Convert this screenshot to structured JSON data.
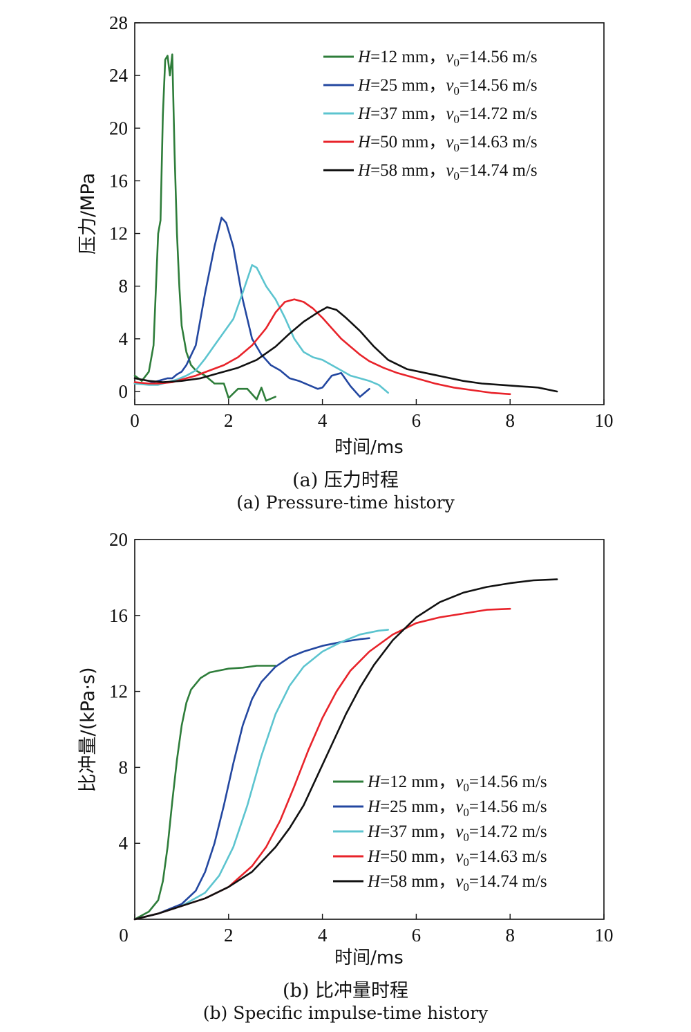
{
  "colors": [
    "#2e7d3a",
    "#2347a0",
    "#5cc4cf",
    "#e8232a",
    "#111111"
  ],
  "chart_data": [
    {
      "type": "line",
      "caption_cn": "(a) 压力时程",
      "caption_en": "(a) Pressure-time history",
      "xlabel": "时间/ms",
      "ylabel": "压力/MPa",
      "xlim": [
        0,
        10
      ],
      "ylim": [
        -1,
        28
      ],
      "xticks": [
        "0",
        "2",
        "4",
        "6",
        "8",
        "10"
      ],
      "yticks": [
        "0",
        "4",
        "8",
        "12",
        "16",
        "20",
        "24",
        "28"
      ],
      "legend_position": "top-right",
      "series": [
        {
          "name_h": "H",
          "name_mid": "=12 mm，",
          "name_v": "v",
          "name_sub": "0",
          "name_tail": "=14.56 m/s",
          "x": [
            0,
            0.15,
            0.3,
            0.4,
            0.5,
            0.55,
            0.6,
            0.65,
            0.7,
            0.75,
            0.8,
            0.85,
            0.9,
            0.95,
            1.0,
            1.1,
            1.2,
            1.3,
            1.5,
            1.7,
            1.9,
            2.0,
            2.2,
            2.4,
            2.6,
            2.7,
            2.8,
            3.0
          ],
          "y": [
            1.2,
            0.8,
            1.5,
            3.5,
            12,
            13,
            21,
            25.2,
            25.5,
            24,
            25.6,
            18,
            12,
            8,
            5,
            3,
            2,
            1.6,
            1.2,
            0.6,
            0.6,
            -0.5,
            0.2,
            0.2,
            -0.6,
            0.3,
            -0.7,
            -0.4
          ]
        },
        {
          "name_h": "H",
          "name_mid": "=25 mm，",
          "name_v": "v",
          "name_sub": "0",
          "name_tail": "=14.56 m/s",
          "x": [
            0,
            0.3,
            0.5,
            0.7,
            0.8,
            0.9,
            1.0,
            1.1,
            1.3,
            1.5,
            1.7,
            1.85,
            1.95,
            2.1,
            2.3,
            2.5,
            2.7,
            2.9,
            3.1,
            3.3,
            3.5,
            3.7,
            3.9,
            4.0,
            4.2,
            4.4,
            4.6,
            4.8,
            5.0
          ],
          "y": [
            0.6,
            0.6,
            0.8,
            1.0,
            1.0,
            1.3,
            1.5,
            2.0,
            3.5,
            7.5,
            11,
            13.2,
            12.8,
            11,
            7,
            4,
            2.8,
            2.0,
            1.6,
            1.0,
            0.8,
            0.5,
            0.2,
            0.3,
            1.2,
            1.4,
            0.4,
            -0.4,
            0.2
          ]
        },
        {
          "name_h": "H",
          "name_mid": "=37 mm，",
          "name_v": "v",
          "name_sub": "0",
          "name_tail": "=14.72 m/s",
          "x": [
            0,
            0.3,
            0.5,
            0.7,
            0.9,
            1.1,
            1.3,
            1.5,
            1.7,
            1.9,
            2.1,
            2.3,
            2.5,
            2.6,
            2.8,
            3.0,
            3.2,
            3.4,
            3.6,
            3.8,
            4.0,
            4.2,
            4.4,
            4.6,
            4.8,
            5.0,
            5.2,
            5.4
          ],
          "y": [
            0.6,
            0.5,
            0.5,
            0.7,
            0.9,
            1.2,
            1.6,
            2.5,
            3.5,
            4.5,
            5.5,
            7.5,
            9.6,
            9.4,
            8,
            7,
            5.6,
            4.0,
            3.0,
            2.6,
            2.4,
            2.0,
            1.6,
            1.2,
            1.0,
            0.8,
            0.5,
            -0.1
          ]
        },
        {
          "name_h": "H",
          "name_mid": "=50 mm，",
          "name_v": "v",
          "name_sub": "0",
          "name_tail": "=14.63 m/s",
          "x": [
            0,
            0.3,
            0.5,
            0.8,
            1.0,
            1.3,
            1.6,
            1.9,
            2.2,
            2.5,
            2.8,
            3.0,
            3.2,
            3.4,
            3.6,
            3.8,
            4.0,
            4.2,
            4.4,
            4.6,
            4.8,
            5.0,
            5.3,
            5.6,
            6.0,
            6.4,
            6.8,
            7.2,
            7.6,
            8.0
          ],
          "y": [
            0.7,
            0.6,
            0.6,
            0.7,
            0.9,
            1.2,
            1.6,
            2.0,
            2.6,
            3.5,
            4.8,
            6.0,
            6.8,
            7.0,
            6.8,
            6.3,
            5.6,
            4.8,
            4.0,
            3.4,
            2.8,
            2.3,
            1.8,
            1.4,
            1.0,
            0.6,
            0.3,
            0.1,
            -0.1,
            -0.2
          ]
        },
        {
          "name_h": "H",
          "name_mid": "=58 mm，",
          "name_v": "v",
          "name_sub": "0",
          "name_tail": "=14.74 m/s",
          "x": [
            0,
            0.3,
            0.6,
            1.0,
            1.4,
            1.8,
            2.2,
            2.6,
            3.0,
            3.3,
            3.6,
            3.9,
            4.1,
            4.3,
            4.5,
            4.8,
            5.1,
            5.4,
            5.8,
            6.2,
            6.6,
            7.0,
            7.4,
            7.8,
            8.2,
            8.6,
            9.0
          ],
          "y": [
            1.0,
            0.8,
            0.7,
            0.8,
            1.0,
            1.4,
            1.8,
            2.4,
            3.4,
            4.4,
            5.3,
            6.0,
            6.4,
            6.2,
            5.6,
            4.6,
            3.4,
            2.4,
            1.7,
            1.4,
            1.1,
            0.8,
            0.6,
            0.5,
            0.4,
            0.3,
            0.0
          ]
        }
      ]
    },
    {
      "type": "line",
      "caption_cn": "(b) 比冲量时程",
      "caption_en": "(b) Specific impulse-time history",
      "xlabel": "时间/ms",
      "ylabel": "比冲量/(kPa·s)",
      "xlim": [
        0,
        10
      ],
      "ylim": [
        0,
        20
      ],
      "xticks": [
        "0",
        "2",
        "4",
        "6",
        "8",
        "10"
      ],
      "yticks": [
        "4",
        "8",
        "12",
        "16",
        "20"
      ],
      "legend_position": "bottom-right",
      "series": [
        {
          "name_h": "H",
          "name_mid": "=12 mm，",
          "name_v": "v",
          "name_sub": "0",
          "name_tail": "=14.56 m/s",
          "x": [
            0,
            0.3,
            0.5,
            0.6,
            0.7,
            0.8,
            0.9,
            1.0,
            1.1,
            1.2,
            1.4,
            1.6,
            1.8,
            2.0,
            2.3,
            2.6,
            3.0
          ],
          "y": [
            0,
            0.4,
            1.0,
            2.0,
            3.8,
            6.2,
            8.4,
            10.2,
            11.4,
            12.1,
            12.7,
            13.0,
            13.1,
            13.2,
            13.25,
            13.35,
            13.35
          ]
        },
        {
          "name_h": "H",
          "name_mid": "=25 mm，",
          "name_v": "v",
          "name_sub": "0",
          "name_tail": "=14.56 m/s",
          "x": [
            0,
            0.5,
            1.0,
            1.3,
            1.5,
            1.7,
            1.9,
            2.1,
            2.3,
            2.5,
            2.7,
            3.0,
            3.3,
            3.6,
            4.0,
            4.4,
            4.8,
            5.0
          ],
          "y": [
            0,
            0.3,
            0.8,
            1.5,
            2.5,
            4.0,
            6.0,
            8.2,
            10.2,
            11.6,
            12.5,
            13.3,
            13.8,
            14.1,
            14.4,
            14.6,
            14.75,
            14.8
          ]
        },
        {
          "name_h": "H",
          "name_mid": "=37 mm，",
          "name_v": "v",
          "name_sub": "0",
          "name_tail": "=14.72 m/s",
          "x": [
            0,
            0.5,
            1.0,
            1.5,
            1.8,
            2.1,
            2.4,
            2.7,
            3.0,
            3.3,
            3.6,
            4.0,
            4.4,
            4.8,
            5.2,
            5.4
          ],
          "y": [
            0,
            0.3,
            0.7,
            1.4,
            2.3,
            3.8,
            6.0,
            8.6,
            10.8,
            12.3,
            13.3,
            14.1,
            14.6,
            15.0,
            15.2,
            15.25
          ]
        },
        {
          "name_h": "H",
          "name_mid": "=50 mm，",
          "name_v": "v",
          "name_sub": "0",
          "name_tail": "=14.63 m/s",
          "x": [
            0,
            0.5,
            1.0,
            1.5,
            2.0,
            2.5,
            2.8,
            3.1,
            3.4,
            3.7,
            4.0,
            4.3,
            4.6,
            5.0,
            5.5,
            6.0,
            6.5,
            7.0,
            7.5,
            8.0
          ],
          "y": [
            0,
            0.3,
            0.7,
            1.1,
            1.7,
            2.8,
            3.8,
            5.2,
            7.0,
            8.9,
            10.6,
            12.0,
            13.1,
            14.1,
            15.0,
            15.6,
            15.9,
            16.1,
            16.3,
            16.35
          ]
        },
        {
          "name_h": "H",
          "name_mid": "=58 mm，",
          "name_v": "v",
          "name_sub": "0",
          "name_tail": "=14.74 m/s",
          "x": [
            0,
            0.5,
            1.0,
            1.5,
            2.0,
            2.5,
            3.0,
            3.3,
            3.6,
            3.9,
            4.2,
            4.5,
            4.8,
            5.1,
            5.5,
            6.0,
            6.5,
            7.0,
            7.5,
            8.0,
            8.5,
            9.0
          ],
          "y": [
            0,
            0.3,
            0.7,
            1.1,
            1.7,
            2.5,
            3.8,
            4.8,
            6.0,
            7.6,
            9.2,
            10.8,
            12.2,
            13.4,
            14.7,
            15.9,
            16.7,
            17.2,
            17.5,
            17.7,
            17.85,
            17.9
          ]
        }
      ]
    }
  ]
}
